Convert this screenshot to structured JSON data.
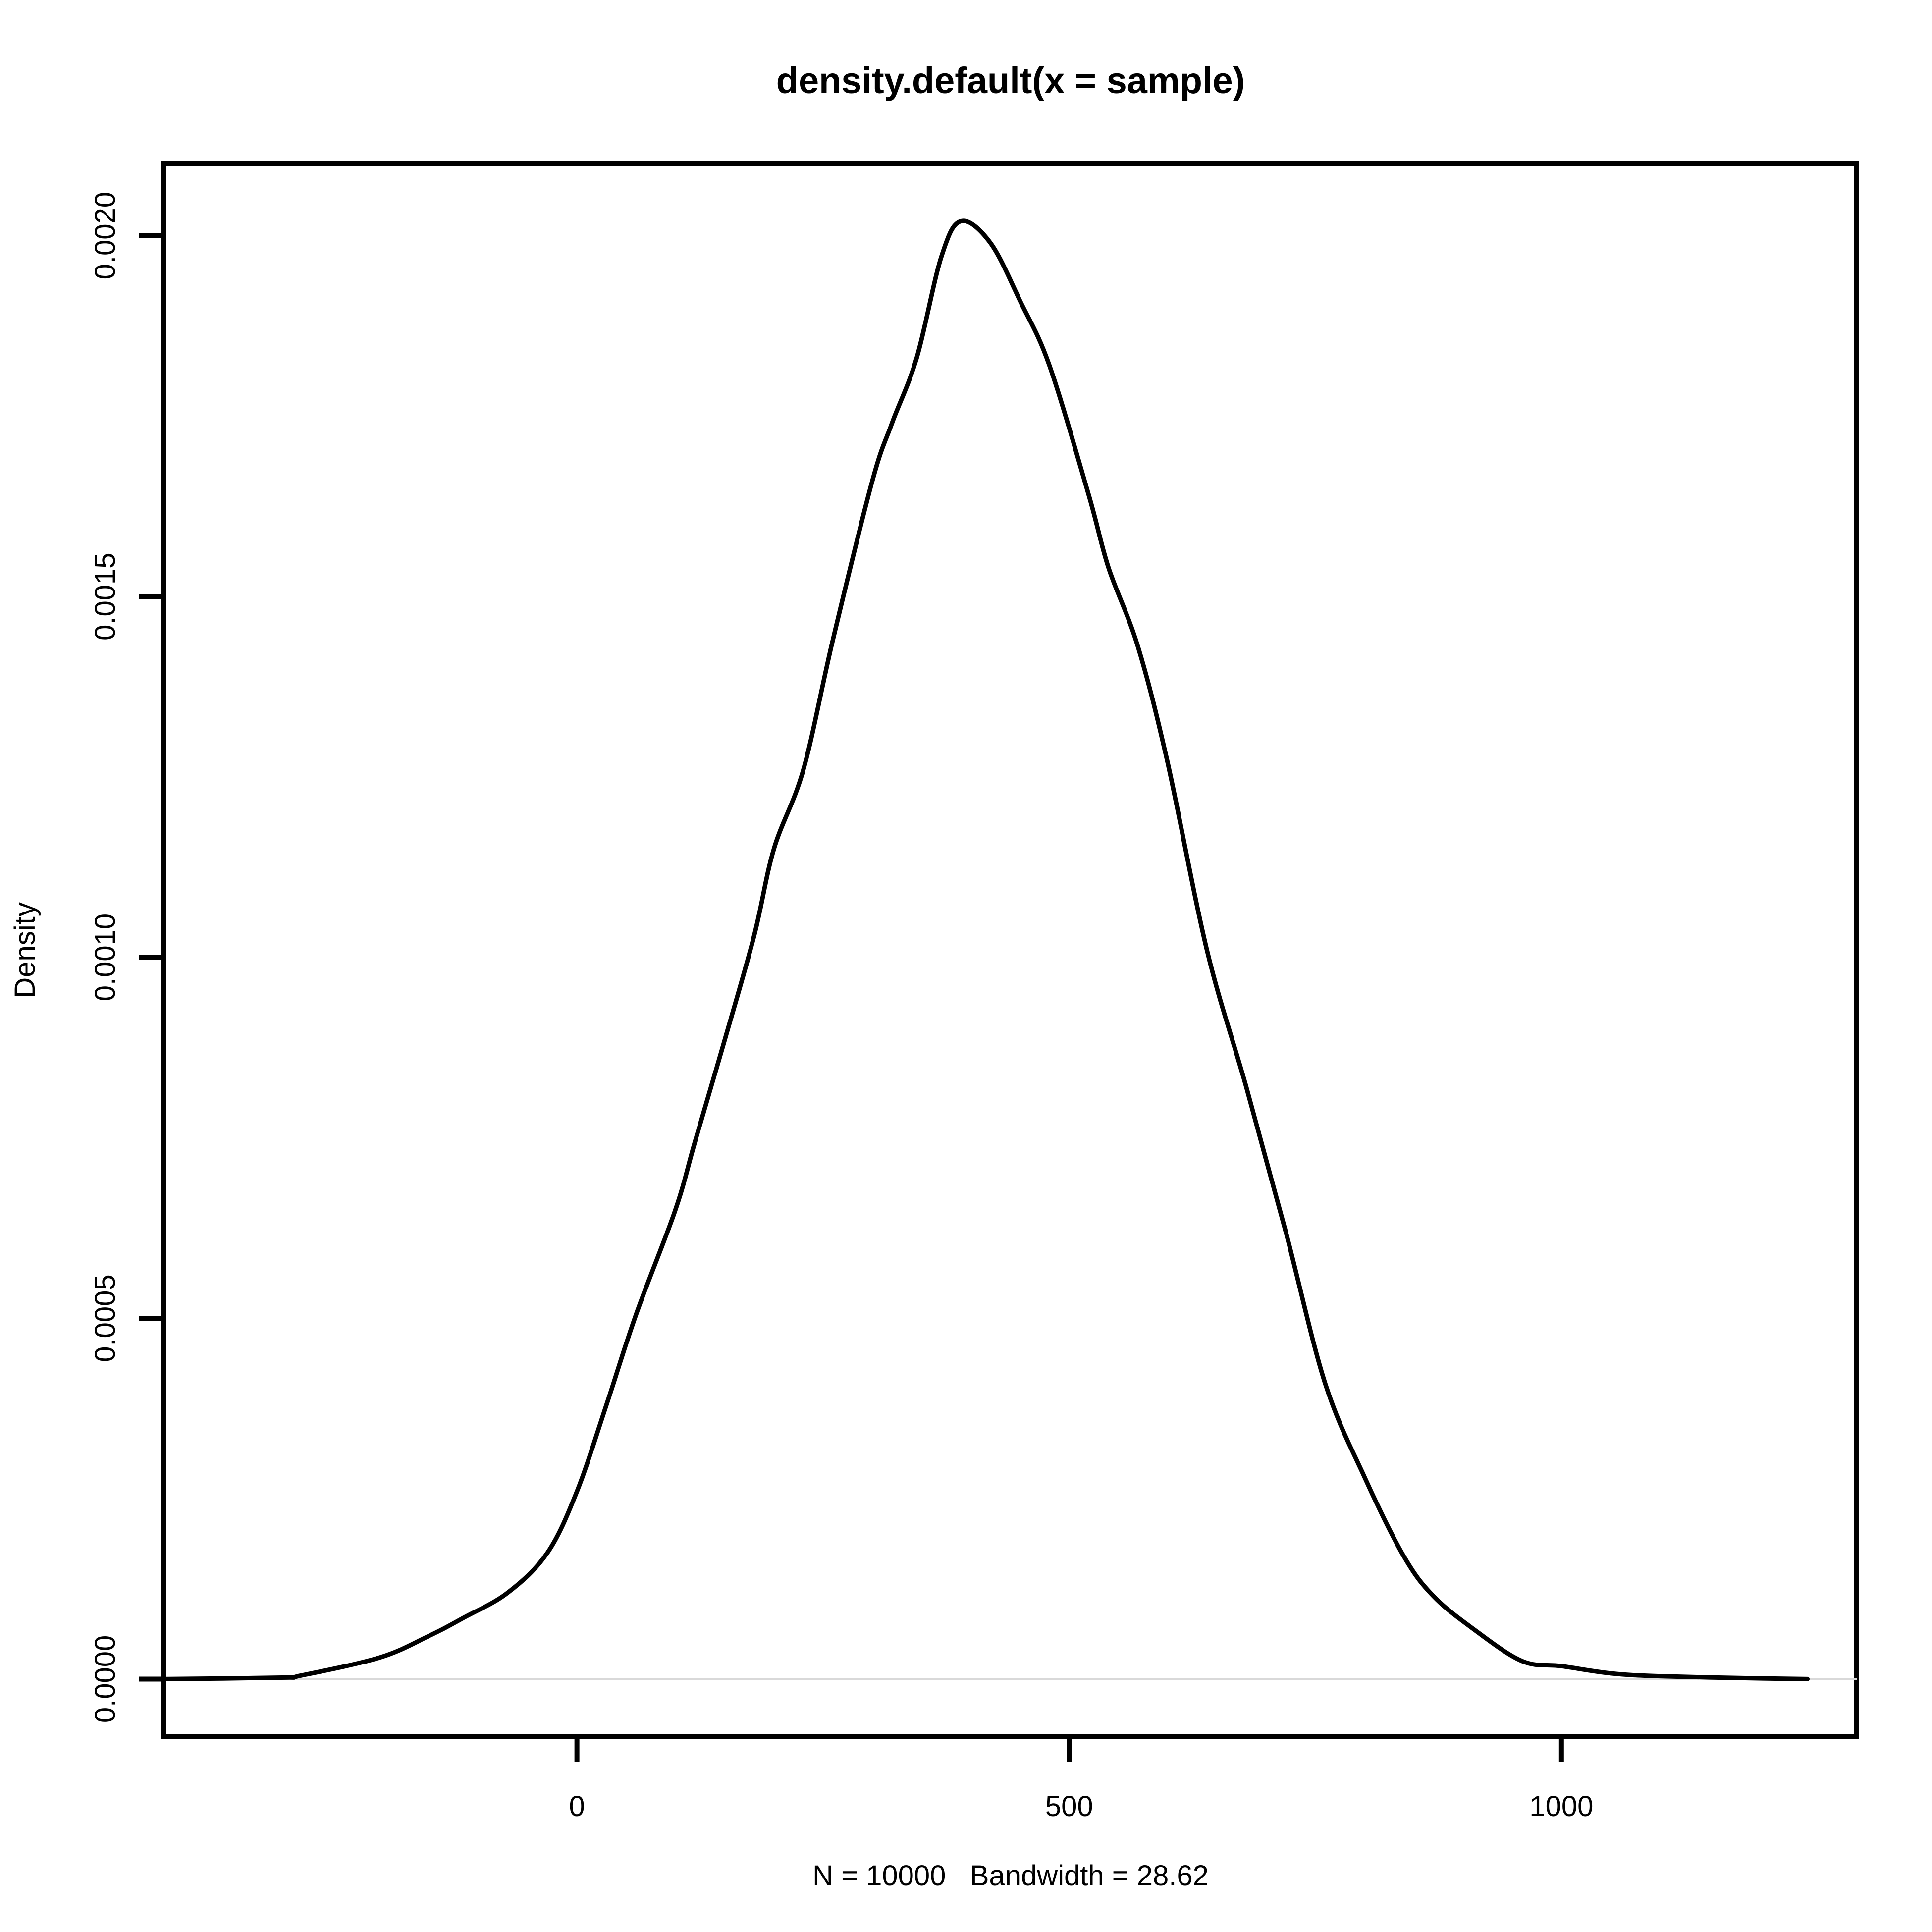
{
  "chart_data": {
    "type": "line",
    "title": "density.default(x = sample)",
    "xlabel": "N = 10000   Bandwidth = 28.62",
    "ylabel": "Density",
    "xlim": [
      -420,
      1300
    ],
    "ylim": [
      -8e-05,
      0.0021
    ],
    "x_ticks": [
      0,
      500,
      1000
    ],
    "x_tick_labels": [
      "0",
      "500",
      "1000"
    ],
    "y_ticks": [
      0,
      0.0005,
      0.001,
      0.0015,
      0.002
    ],
    "y_tick_labels": [
      "0.0000",
      "0.0005",
      "0.0010",
      "0.0015",
      "0.0020"
    ],
    "zero_line": true,
    "grid": false,
    "line_color": "#000000",
    "zero_line_color": "#d9d9d9",
    "series": [
      {
        "x": [
          -420,
          -300,
          -280,
          -200,
          -150,
          -115,
          -70,
          -30,
          0,
          30,
          60,
          100,
          120,
          150,
          180,
          200,
          230,
          260,
          300,
          320,
          345,
          370,
          390,
          420,
          450,
          480,
          520,
          540,
          570,
          600,
          640,
          680,
          720,
          760,
          800,
          840,
          870,
          910,
          960,
          1000,
          1050,
          1100,
          1200,
          1250
        ],
        "y": [
          0.0,
          2e-06,
          5e-06,
          3e-05,
          6e-05,
          8.5e-05,
          0.00012,
          0.000175,
          0.00026,
          0.00038,
          0.000505,
          0.00065,
          0.000745,
          0.000885,
          0.00103,
          0.00115,
          0.00126,
          0.00144,
          0.00166,
          0.00174,
          0.00183,
          0.00197,
          0.00202,
          0.00199,
          0.00191,
          0.00182,
          0.00164,
          0.00154,
          0.00143,
          0.00127,
          0.00101,
          0.00082,
          0.00062,
          0.00041,
          0.00028,
          0.00017,
          0.000115,
          7e-05,
          2.5e-05,
          1.8e-05,
          8e-06,
          4e-06,
          1e-06,
          0.0
        ]
      }
    ]
  }
}
